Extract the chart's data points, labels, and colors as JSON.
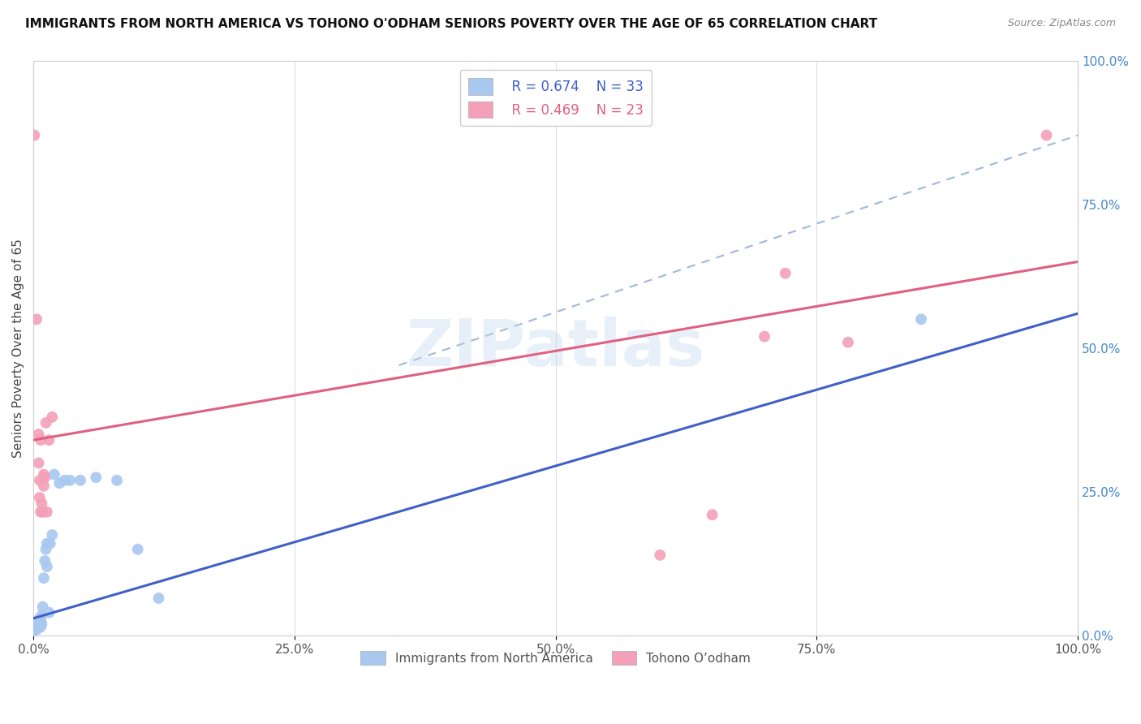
{
  "title": "IMMIGRANTS FROM NORTH AMERICA VS TOHONO O'ODHAM SENIORS POVERTY OVER THE AGE OF 65 CORRELATION CHART",
  "source": "Source: ZipAtlas.com",
  "ylabel": "Seniors Poverty Over the Age of 65",
  "watermark": "ZIPatlas",
  "legend_blue_r": "R = 0.674",
  "legend_blue_n": "N = 33",
  "legend_pink_r": "R = 0.469",
  "legend_pink_n": "N = 23",
  "legend_blue_label": "Immigrants from North America",
  "legend_pink_label": "Tohono O’odham",
  "blue_color": "#a8c8f0",
  "pink_color": "#f4a0b8",
  "blue_line_color": "#4060c8",
  "pink_line_color": "#e06080",
  "dash_color": "#a0b8d8",
  "blue_scatter": [
    [
      0.001,
      0.01
    ],
    [
      0.002,
      0.015
    ],
    [
      0.002,
      0.02
    ],
    [
      0.003,
      0.01
    ],
    [
      0.003,
      0.018
    ],
    [
      0.004,
      0.02
    ],
    [
      0.005,
      0.025
    ],
    [
      0.005,
      0.015
    ],
    [
      0.006,
      0.022
    ],
    [
      0.006,
      0.03
    ],
    [
      0.007,
      0.015
    ],
    [
      0.007,
      0.028
    ],
    [
      0.008,
      0.035
    ],
    [
      0.008,
      0.02
    ],
    [
      0.009,
      0.05
    ],
    [
      0.01,
      0.1
    ],
    [
      0.011,
      0.13
    ],
    [
      0.012,
      0.15
    ],
    [
      0.013,
      0.16
    ],
    [
      0.013,
      0.12
    ],
    [
      0.015,
      0.04
    ],
    [
      0.016,
      0.16
    ],
    [
      0.018,
      0.175
    ],
    [
      0.02,
      0.28
    ],
    [
      0.025,
      0.265
    ],
    [
      0.03,
      0.27
    ],
    [
      0.035,
      0.27
    ],
    [
      0.045,
      0.27
    ],
    [
      0.06,
      0.275
    ],
    [
      0.08,
      0.27
    ],
    [
      0.1,
      0.15
    ],
    [
      0.12,
      0.065
    ],
    [
      0.85,
      0.55
    ]
  ],
  "pink_scatter": [
    [
      0.001,
      0.87
    ],
    [
      0.003,
      0.55
    ],
    [
      0.005,
      0.35
    ],
    [
      0.005,
      0.3
    ],
    [
      0.006,
      0.27
    ],
    [
      0.006,
      0.24
    ],
    [
      0.007,
      0.215
    ],
    [
      0.007,
      0.34
    ],
    [
      0.008,
      0.23
    ],
    [
      0.009,
      0.215
    ],
    [
      0.01,
      0.26
    ],
    [
      0.01,
      0.28
    ],
    [
      0.011,
      0.275
    ],
    [
      0.012,
      0.37
    ],
    [
      0.013,
      0.215
    ],
    [
      0.015,
      0.34
    ],
    [
      0.018,
      0.38
    ],
    [
      0.6,
      0.14
    ],
    [
      0.65,
      0.21
    ],
    [
      0.7,
      0.52
    ],
    [
      0.72,
      0.63
    ],
    [
      0.78,
      0.51
    ],
    [
      0.97,
      0.87
    ]
  ],
  "blue_line": [
    [
      0.0,
      0.03
    ],
    [
      1.0,
      0.56
    ]
  ],
  "pink_line": [
    [
      0.0,
      0.34
    ],
    [
      1.0,
      0.65
    ]
  ],
  "dash_line": [
    [
      0.35,
      0.47
    ],
    [
      1.0,
      0.87
    ]
  ],
  "xlim": [
    0,
    1
  ],
  "ylim": [
    0,
    1
  ],
  "xticks": [
    0,
    0.25,
    0.5,
    0.75,
    1.0
  ],
  "xticklabels": [
    "0.0%",
    "25.0%",
    "50.0%",
    "75.0%",
    "100.0%"
  ],
  "yticks_right": [
    0,
    0.25,
    0.5,
    0.75,
    1.0
  ],
  "yticklabels_right": [
    "0.0%",
    "25.0%",
    "50.0%",
    "75.0%",
    "100.0%"
  ],
  "background_color": "#ffffff",
  "grid_color": "#e0e0e0"
}
